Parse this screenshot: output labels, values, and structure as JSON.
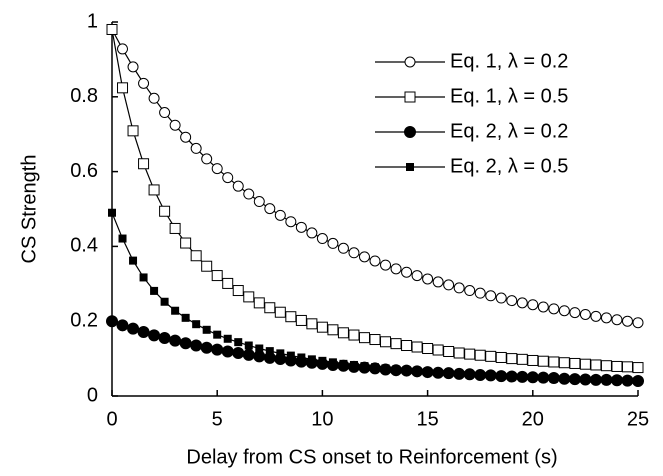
{
  "chart_data": {
    "type": "line",
    "x_label": "Delay from CS onset to Reinforcement (s)",
    "y_label": "CS Strength",
    "x": [
      0,
      0.5,
      1,
      1.5,
      2,
      2.5,
      3,
      3.5,
      4,
      4.5,
      5,
      5.5,
      6,
      6.5,
      7,
      7.5,
      8,
      8.5,
      9,
      9.5,
      10,
      10.5,
      11,
      11.5,
      12,
      12.5,
      13,
      13.5,
      14,
      14.5,
      15,
      15.5,
      16,
      16.5,
      17,
      17.5,
      18,
      18.5,
      19,
      19.5,
      20,
      20.5,
      21,
      21.5,
      22,
      22.5,
      23,
      23.5,
      24,
      24.5,
      25
    ],
    "series": [
      {
        "name": "Eq. 1, λ = 0.2",
        "color": "#000000",
        "marker": "open-circle",
        "values": [
          0.98,
          0.928,
          0.88,
          0.836,
          0.796,
          0.758,
          0.724,
          0.692,
          0.662,
          0.634,
          0.608,
          0.584,
          0.561,
          0.54,
          0.52,
          0.501,
          0.483,
          0.466,
          0.451,
          0.436,
          0.421,
          0.408,
          0.395,
          0.383,
          0.372,
          0.361,
          0.35,
          0.34,
          0.331,
          0.322,
          0.313,
          0.305,
          0.297,
          0.289,
          0.282,
          0.275,
          0.268,
          0.262,
          0.255,
          0.249,
          0.244,
          0.238,
          0.233,
          0.228,
          0.223,
          0.218,
          0.213,
          0.209,
          0.204,
          0.2,
          0.196
        ]
      },
      {
        "name": "Eq. 1, λ = 0.5",
        "color": "#000000",
        "marker": "open-square",
        "values": [
          0.98,
          0.824,
          0.709,
          0.621,
          0.551,
          0.494,
          0.448,
          0.409,
          0.375,
          0.347,
          0.322,
          0.301,
          0.282,
          0.265,
          0.249,
          0.236,
          0.224,
          0.212,
          0.202,
          0.193,
          0.184,
          0.177,
          0.169,
          0.163,
          0.156,
          0.151,
          0.145,
          0.14,
          0.135,
          0.131,
          0.127,
          0.123,
          0.119,
          0.115,
          0.112,
          0.109,
          0.106,
          0.103,
          0.1,
          0.098,
          0.095,
          0.093,
          0.091,
          0.089,
          0.087,
          0.085,
          0.083,
          0.081,
          0.079,
          0.078,
          0.076
        ]
      },
      {
        "name": "Eq. 2, λ = 0.2",
        "color": "#000000",
        "marker": "filled-circle",
        "values": [
          0.2,
          0.189,
          0.18,
          0.171,
          0.162,
          0.155,
          0.148,
          0.141,
          0.135,
          0.129,
          0.124,
          0.119,
          0.115,
          0.11,
          0.106,
          0.102,
          0.099,
          0.095,
          0.092,
          0.089,
          0.086,
          0.083,
          0.081,
          0.078,
          0.076,
          0.074,
          0.071,
          0.069,
          0.068,
          0.066,
          0.064,
          0.062,
          0.061,
          0.059,
          0.058,
          0.056,
          0.055,
          0.053,
          0.052,
          0.051,
          0.05,
          0.049,
          0.048,
          0.046,
          0.045,
          0.044,
          0.043,
          0.043,
          0.042,
          0.041,
          0.04
        ]
      },
      {
        "name": "Eq. 2, λ = 0.5",
        "color": "#000000",
        "marker": "filled-square",
        "values": [
          0.49,
          0.421,
          0.362,
          0.317,
          0.281,
          0.252,
          0.228,
          0.209,
          0.192,
          0.177,
          0.164,
          0.153,
          0.144,
          0.135,
          0.127,
          0.12,
          0.114,
          0.108,
          0.103,
          0.098,
          0.094,
          0.09,
          0.086,
          0.083,
          0.08,
          0.077,
          0.074,
          0.071,
          0.069,
          0.067,
          0.065,
          0.063,
          0.061,
          0.059,
          0.057,
          0.056,
          0.054,
          0.053,
          0.051,
          0.05,
          0.049,
          0.047,
          0.046,
          0.045,
          0.044,
          0.043,
          0.042,
          0.041,
          0.04,
          0.04,
          0.039
        ]
      }
    ],
    "xlim": [
      0,
      25
    ],
    "xticks": [
      0,
      5,
      10,
      15,
      20,
      25
    ],
    "ylim": [
      0,
      1
    ],
    "yticks": [
      0,
      0.2,
      0.4,
      0.6,
      0.8,
      1
    ],
    "grid": false,
    "legend": "upper right"
  }
}
